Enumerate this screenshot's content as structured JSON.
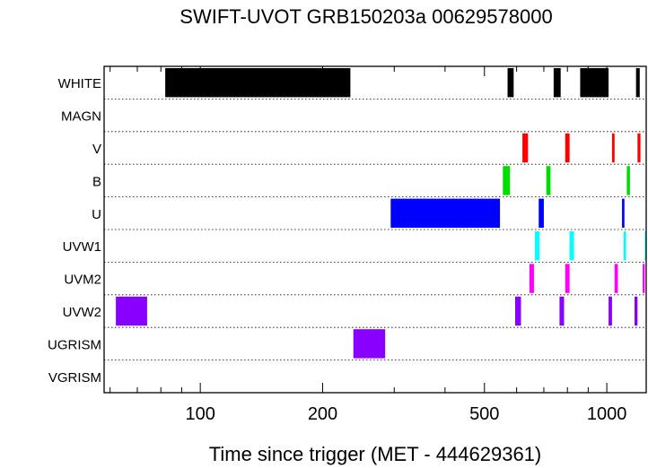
{
  "chart_data": {
    "type": "bar",
    "title": "SWIFT-UVOT GRB150203a 00629578000",
    "xlabel": "Time since trigger (MET - 444629361)",
    "ylabel": "",
    "x_scale": "log",
    "xlim": [
      58,
      1250
    ],
    "x_tick_labels": [
      100,
      200,
      500,
      1000
    ],
    "grid": "dotted row separators",
    "categories": [
      "WHITE",
      "MAGN",
      "V",
      "B",
      "U",
      "UVW1",
      "UVM2",
      "UVW2",
      "UGRISM",
      "VGRISM"
    ],
    "series": [
      {
        "category": "WHITE",
        "color": "#000000",
        "intervals": [
          [
            82,
            234
          ],
          [
            570,
            590
          ],
          [
            740,
            770
          ],
          [
            860,
            1010
          ],
          [
            1180,
            1205
          ]
        ]
      },
      {
        "category": "MAGN",
        "color": "#000000",
        "intervals": []
      },
      {
        "category": "V",
        "color": "#ff0000",
        "intervals": [
          [
            620,
            640
          ],
          [
            790,
            810
          ],
          [
            1030,
            1045
          ],
          [
            1190,
            1210
          ]
        ]
      },
      {
        "category": "B",
        "color": "#00dd00",
        "intervals": [
          [
            555,
            578
          ],
          [
            710,
            727
          ],
          [
            1120,
            1140
          ]
        ]
      },
      {
        "category": "U",
        "color": "#0000ff",
        "intervals": [
          [
            294,
            546
          ],
          [
            680,
            700
          ],
          [
            1090,
            1105
          ]
        ]
      },
      {
        "category": "UVW1",
        "color": "#00ffff",
        "intervals": [
          [
            665,
            683
          ],
          [
            810,
            830
          ],
          [
            1100,
            1115
          ],
          [
            1240,
            1250
          ]
        ]
      },
      {
        "category": "UVM2",
        "color": "#ff00ff",
        "intervals": [
          [
            645,
            662
          ],
          [
            790,
            810
          ],
          [
            1045,
            1065
          ],
          [
            1225,
            1240
          ]
        ]
      },
      {
        "category": "UVW2",
        "color": "#8800ff",
        "intervals": [
          [
            62,
            74
          ],
          [
            595,
            615
          ],
          [
            765,
            785
          ],
          [
            1010,
            1030
          ],
          [
            1170,
            1190
          ]
        ]
      },
      {
        "category": "UGRISM",
        "color": "#8800ff",
        "intervals": [
          [
            238,
            285
          ]
        ]
      },
      {
        "category": "VGRISM",
        "color": "#8800ff",
        "intervals": []
      }
    ]
  }
}
